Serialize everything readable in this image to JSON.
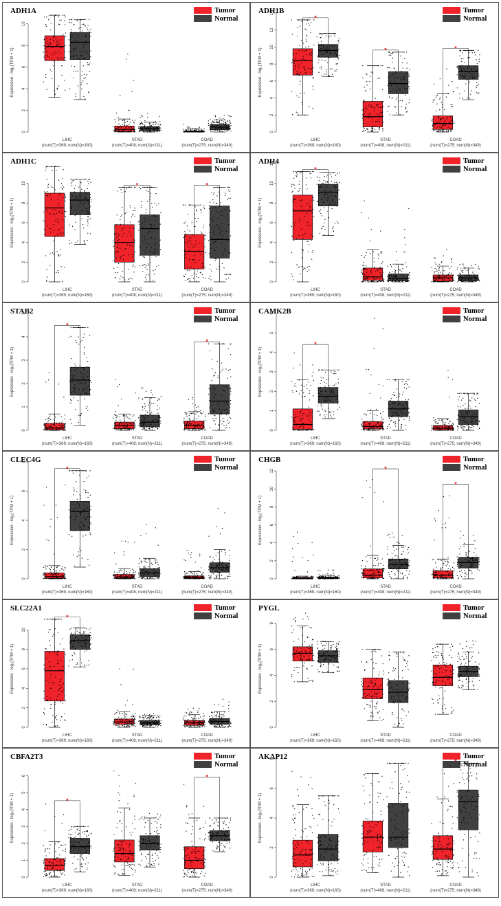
{
  "figure": {
    "colors": {
      "tumor": "#f0222a",
      "normal": "#404040",
      "sig": "#e8191d",
      "border": "#555555"
    },
    "legend": {
      "tumor": "Tumor",
      "normal": "Normal"
    },
    "categories": [
      "LIHC",
      "STAD",
      "COAD"
    ],
    "sample_labels": [
      "(num(T)=369; num(N)=160)",
      "(num(T)=408; num(N)=211)",
      "(num(T)=275; num(N)=349)"
    ],
    "ylabel": "Expression - log₂(TPM + 1)"
  },
  "chart_data": [
    {
      "type": "box",
      "title": "ADH1A",
      "ylim": [
        0,
        11
      ],
      "yticks": [
        0,
        2,
        4,
        6,
        8,
        10
      ],
      "legend_pos": "top-right",
      "series": [
        {
          "name": "Tumor",
          "boxes": [
            {
              "q1": 6.6,
              "med": 7.9,
              "q3": 8.9,
              "wlo": 3.2,
              "whi": 10.8,
              "max": 10.8
            },
            {
              "q1": 0.05,
              "med": 0.25,
              "q3": 0.55,
              "wlo": 0.0,
              "whi": 1.2,
              "max": 7.5
            },
            {
              "q1": 0.0,
              "med": 0.03,
              "q3": 0.1,
              "wlo": 0.0,
              "whi": 0.3,
              "max": 0.7
            }
          ]
        },
        {
          "name": "Normal",
          "boxes": [
            {
              "q1": 6.7,
              "med": 8.3,
              "q3": 9.2,
              "wlo": 3.0,
              "whi": 10.4,
              "max": 10.4
            },
            {
              "q1": 0.1,
              "med": 0.3,
              "q3": 0.5,
              "wlo": 0.0,
              "whi": 0.9,
              "max": 1.8
            },
            {
              "q1": 0.2,
              "med": 0.45,
              "q3": 0.7,
              "wlo": 0.0,
              "whi": 1.1,
              "max": 1.6
            }
          ]
        }
      ],
      "significant": []
    },
    {
      "type": "box",
      "title": "ADH1B",
      "ylim": [
        0,
        14
      ],
      "yticks": [
        0,
        2,
        4,
        6,
        8,
        10,
        12,
        14
      ],
      "legend_pos": "top-right",
      "series": [
        {
          "name": "Tumor",
          "boxes": [
            {
              "q1": 6.7,
              "med": 8.4,
              "q3": 9.8,
              "wlo": 2.0,
              "whi": 13.2,
              "max": 13.2
            },
            {
              "q1": 0.6,
              "med": 1.8,
              "q3": 3.6,
              "wlo": 0.0,
              "whi": 7.8,
              "max": 7.8
            },
            {
              "q1": 0.3,
              "med": 1.0,
              "q3": 1.9,
              "wlo": 0.0,
              "whi": 4.5,
              "max": 7.5
            }
          ]
        },
        {
          "name": "Normal",
          "boxes": [
            {
              "q1": 8.8,
              "med": 9.6,
              "q3": 10.3,
              "wlo": 6.5,
              "whi": 11.6,
              "max": 11.6
            },
            {
              "q1": 4.5,
              "med": 5.7,
              "q3": 7.1,
              "wlo": 2.0,
              "whi": 9.4,
              "max": 9.4
            },
            {
              "q1": 6.2,
              "med": 7.1,
              "q3": 7.8,
              "wlo": 3.8,
              "whi": 9.6,
              "max": 9.6
            }
          ]
        }
      ],
      "significant": [
        true,
        true,
        true
      ]
    },
    {
      "type": "box",
      "title": "ADH1C",
      "ylim": [
        0,
        12
      ],
      "yticks": [
        0,
        2,
        4,
        6,
        8,
        10
      ],
      "legend_pos": "top-right",
      "series": [
        {
          "name": "Tumor",
          "boxes": [
            {
              "q1": 4.6,
              "med": 7.5,
              "q3": 9.0,
              "wlo": 0.0,
              "whi": 11.7,
              "max": 11.7
            },
            {
              "q1": 2.0,
              "med": 4.0,
              "q3": 5.8,
              "wlo": 0.0,
              "whi": 9.6,
              "max": 9.6
            },
            {
              "q1": 1.3,
              "med": 3.1,
              "q3": 4.8,
              "wlo": 0.0,
              "whi": 7.8,
              "max": 7.8
            }
          ]
        },
        {
          "name": "Normal",
          "boxes": [
            {
              "q1": 6.8,
              "med": 8.3,
              "q3": 9.1,
              "wlo": 3.8,
              "whi": 10.4,
              "max": 10.4
            },
            {
              "q1": 2.7,
              "med": 5.4,
              "q3": 6.8,
              "wlo": 0.0,
              "whi": 9.6,
              "max": 9.6
            },
            {
              "q1": 2.4,
              "med": 4.3,
              "q3": 7.7,
              "wlo": 0.0,
              "whi": 9.6,
              "max": 9.6
            }
          ]
        }
      ],
      "significant": [
        false,
        true,
        true
      ]
    },
    {
      "type": "box",
      "title": "ADH4",
      "ylim": [
        0,
        12
      ],
      "yticks": [
        0,
        2,
        4,
        6,
        8,
        10,
        12
      ],
      "legend_pos": "top-right",
      "series": [
        {
          "name": "Tumor",
          "boxes": [
            {
              "q1": 4.3,
              "med": 7.2,
              "q3": 8.8,
              "wlo": 0.0,
              "whi": 11.2,
              "max": 11.2
            },
            {
              "q1": 0.15,
              "med": 0.5,
              "q3": 1.4,
              "wlo": 0.0,
              "whi": 3.3,
              "max": 8.6
            },
            {
              "q1": 0.05,
              "med": 0.4,
              "q3": 0.7,
              "wlo": 0.0,
              "whi": 1.6,
              "max": 3.5
            }
          ]
        },
        {
          "name": "Normal",
          "boxes": [
            {
              "q1": 7.7,
              "med": 9.1,
              "q3": 9.9,
              "wlo": 4.7,
              "whi": 11.1,
              "max": 11.1
            },
            {
              "q1": 0.1,
              "med": 0.35,
              "q3": 0.8,
              "wlo": 0.0,
              "whi": 1.8,
              "max": 7.8
            },
            {
              "q1": 0.1,
              "med": 0.4,
              "q3": 0.7,
              "wlo": 0.0,
              "whi": 1.4,
              "max": 1.9
            }
          ]
        }
      ],
      "significant": [
        true,
        false,
        false
      ]
    },
    {
      "type": "box",
      "title": "STAB2",
      "ylim": [
        0,
        5
      ],
      "yticks": [
        0,
        1,
        2,
        3,
        4,
        5
      ],
      "legend_pos": "top-right",
      "series": [
        {
          "name": "Tumor",
          "boxes": [
            {
              "q1": 0.02,
              "med": 0.1,
              "q3": 0.3,
              "wlo": 0.0,
              "whi": 0.7,
              "max": 2.8
            },
            {
              "q1": 0.07,
              "med": 0.2,
              "q3": 0.35,
              "wlo": 0.0,
              "whi": 0.7,
              "max": 2.2
            },
            {
              "q1": 0.07,
              "med": 0.2,
              "q3": 0.4,
              "wlo": 0.0,
              "whi": 0.8,
              "max": 1.5
            }
          ]
        },
        {
          "name": "Normal",
          "boxes": [
            {
              "q1": 1.5,
              "med": 2.15,
              "q3": 2.7,
              "wlo": 0.2,
              "whi": 4.4,
              "max": 4.4
            },
            {
              "q1": 0.15,
              "med": 0.35,
              "q3": 0.65,
              "wlo": 0.0,
              "whi": 1.4,
              "max": 1.9
            },
            {
              "q1": 0.7,
              "med": 1.25,
              "q3": 1.95,
              "wlo": 0.0,
              "whi": 3.7,
              "max": 3.7
            }
          ]
        }
      ],
      "significant": [
        true,
        false,
        true
      ]
    },
    {
      "type": "box",
      "title": "CAMK2B",
      "ylim": [
        0,
        6
      ],
      "yticks": [
        0,
        1,
        2,
        3,
        4,
        5,
        6
      ],
      "legend_pos": "top-right",
      "series": [
        {
          "name": "Tumor",
          "boxes": [
            {
              "q1": 0.05,
              "med": 0.3,
              "q3": 1.1,
              "wlo": 0.0,
              "whi": 2.6,
              "max": 4.3
            },
            {
              "q1": 0.07,
              "med": 0.2,
              "q3": 0.45,
              "wlo": 0.0,
              "whi": 1.0,
              "max": 6.0
            },
            {
              "q1": 0.02,
              "med": 0.1,
              "q3": 0.25,
              "wlo": 0.0,
              "whi": 0.6,
              "max": 3.6
            }
          ]
        },
        {
          "name": "Normal",
          "boxes": [
            {
              "q1": 1.4,
              "med": 1.75,
              "q3": 2.2,
              "wlo": 0.6,
              "whi": 3.1,
              "max": 3.1
            },
            {
              "q1": 0.7,
              "med": 1.1,
              "q3": 1.5,
              "wlo": 0.0,
              "whi": 2.6,
              "max": 2.6
            },
            {
              "q1": 0.3,
              "med": 0.7,
              "q3": 1.05,
              "wlo": 0.0,
              "whi": 1.9,
              "max": 1.9
            }
          ]
        }
      ],
      "significant": [
        true,
        false,
        false
      ]
    },
    {
      "type": "box",
      "title": "CLEC4G",
      "ylim": [
        0,
        8
      ],
      "yticks": [
        0,
        2,
        4,
        6,
        8
      ],
      "legend_pos": "top-right",
      "series": [
        {
          "name": "Tumor",
          "boxes": [
            {
              "q1": 0.03,
              "med": 0.15,
              "q3": 0.4,
              "wlo": 0.0,
              "whi": 0.9,
              "max": 6.5
            },
            {
              "q1": 0.03,
              "med": 0.12,
              "q3": 0.3,
              "wlo": 0.0,
              "whi": 0.7,
              "max": 2.6
            },
            {
              "q1": 0.02,
              "med": 0.08,
              "q3": 0.2,
              "wlo": 0.0,
              "whi": 0.5,
              "max": 2.0
            }
          ]
        },
        {
          "name": "Normal",
          "boxes": [
            {
              "q1": 3.3,
              "med": 4.6,
              "q3": 5.3,
              "wlo": 0.8,
              "whi": 7.4,
              "max": 7.4
            },
            {
              "q1": 0.15,
              "med": 0.4,
              "q3": 0.7,
              "wlo": 0.0,
              "whi": 1.4,
              "max": 3.8
            },
            {
              "q1": 0.45,
              "med": 0.75,
              "q3": 1.1,
              "wlo": 0.0,
              "whi": 2.0,
              "max": 5.4
            }
          ]
        }
      ],
      "significant": [
        true,
        false,
        false
      ]
    },
    {
      "type": "box",
      "title": "CHGB",
      "ylim": [
        0,
        13
      ],
      "yticks": [
        0,
        2,
        4,
        6,
        8,
        10,
        12
      ],
      "legend_pos": "top-right",
      "series": [
        {
          "name": "Tumor",
          "boxes": [
            {
              "q1": 0.0,
              "med": 0.05,
              "q3": 0.15,
              "wlo": 0.0,
              "whi": 0.3,
              "max": 5.8
            },
            {
              "q1": 0.1,
              "med": 0.4,
              "q3": 1.1,
              "wlo": 0.0,
              "whi": 2.6,
              "max": 12.0
            },
            {
              "q1": 0.1,
              "med": 0.4,
              "q3": 0.9,
              "wlo": 0.0,
              "whi": 2.2,
              "max": 10.3
            }
          ]
        },
        {
          "name": "Normal",
          "boxes": [
            {
              "q1": 0.02,
              "med": 0.08,
              "q3": 0.2,
              "wlo": 0.0,
              "whi": 0.4,
              "max": 1.0
            },
            {
              "q1": 1.1,
              "med": 1.6,
              "q3": 2.2,
              "wlo": 0.0,
              "whi": 3.7,
              "max": 5.2
            },
            {
              "q1": 1.2,
              "med": 1.8,
              "q3": 2.4,
              "wlo": 0.0,
              "whi": 3.8,
              "max": 5.4
            }
          ]
        }
      ],
      "significant": [
        false,
        true,
        true
      ]
    },
    {
      "type": "box",
      "title": "SLC22A1",
      "ylim": [
        0,
        12
      ],
      "yticks": [
        0,
        2,
        4,
        6,
        8,
        10
      ],
      "legend_pos": "top-right",
      "series": [
        {
          "name": "Tumor",
          "boxes": [
            {
              "q1": 2.7,
              "med": 5.8,
              "q3": 7.8,
              "wlo": 0.0,
              "whi": 11.1,
              "max": 11.1
            },
            {
              "q1": 0.3,
              "med": 0.55,
              "q3": 0.85,
              "wlo": 0.0,
              "whi": 1.6,
              "max": 6.1
            },
            {
              "q1": 0.2,
              "med": 0.45,
              "q3": 0.7,
              "wlo": 0.0,
              "whi": 1.3,
              "max": 2.0
            }
          ]
        },
        {
          "name": "Normal",
          "boxes": [
            {
              "q1": 8.0,
              "med": 8.9,
              "q3": 9.5,
              "wlo": 6.2,
              "whi": 10.2,
              "max": 10.2
            },
            {
              "q1": 0.25,
              "med": 0.45,
              "q3": 0.7,
              "wlo": 0.0,
              "whi": 1.2,
              "max": 1.4
            },
            {
              "q1": 0.3,
              "med": 0.6,
              "q3": 0.9,
              "wlo": 0.0,
              "whi": 1.6,
              "max": 2.9
            }
          ]
        }
      ],
      "significant": [
        true,
        false,
        false
      ]
    },
    {
      "type": "box",
      "title": "PYGL",
      "ylim": [
        0,
        9
      ],
      "yticks": [
        0,
        2,
        4,
        6,
        8
      ],
      "legend_pos": "top-right",
      "series": [
        {
          "name": "Tumor",
          "boxes": [
            {
              "q1": 5.1,
              "med": 5.7,
              "q3": 6.2,
              "wlo": 3.5,
              "whi": 7.8,
              "max": 8.8
            },
            {
              "q1": 2.2,
              "med": 2.9,
              "q3": 3.8,
              "wlo": 0.5,
              "whi": 6.0,
              "max": 6.0
            },
            {
              "q1": 3.2,
              "med": 3.85,
              "q3": 4.8,
              "wlo": 1.0,
              "whi": 6.4,
              "max": 6.4
            }
          ]
        },
        {
          "name": "Normal",
          "boxes": [
            {
              "q1": 5.0,
              "med": 5.5,
              "q3": 5.9,
              "wlo": 4.2,
              "whi": 6.6,
              "max": 6.6
            },
            {
              "q1": 1.9,
              "med": 2.7,
              "q3": 3.6,
              "wlo": 0.0,
              "whi": 5.8,
              "max": 5.8
            },
            {
              "q1": 3.9,
              "med": 4.3,
              "q3": 4.7,
              "wlo": 2.9,
              "whi": 5.8,
              "max": 6.8
            }
          ]
        }
      ],
      "significant": [
        false,
        false,
        false
      ]
    },
    {
      "type": "box",
      "title": "CBFA2T3",
      "ylim": [
        0,
        7
      ],
      "yticks": [
        0,
        1,
        2,
        3,
        4,
        5,
        6
      ],
      "legend_pos": "top-right",
      "series": [
        {
          "name": "Tumor",
          "boxes": [
            {
              "q1": 0.4,
              "med": 0.7,
              "q3": 1.1,
              "wlo": 0.0,
              "whi": 2.1,
              "max": 4.4
            },
            {
              "q1": 0.9,
              "med": 1.4,
              "q3": 2.2,
              "wlo": 0.1,
              "whi": 4.1,
              "max": 6.4
            },
            {
              "q1": 0.5,
              "med": 1.0,
              "q3": 1.8,
              "wlo": 0.0,
              "whi": 3.5,
              "max": 5.8
            }
          ]
        },
        {
          "name": "Normal",
          "boxes": [
            {
              "q1": 1.4,
              "med": 1.8,
              "q3": 2.3,
              "wlo": 0.3,
              "whi": 3.0,
              "max": 3.0
            },
            {
              "q1": 1.6,
              "med": 2.0,
              "q3": 2.45,
              "wlo": 0.6,
              "whi": 3.5,
              "max": 3.8
            },
            {
              "q1": 2.15,
              "med": 2.45,
              "q3": 2.75,
              "wlo": 1.5,
              "whi": 3.5,
              "max": 3.5
            }
          ]
        }
      ],
      "significant": [
        true,
        false,
        true
      ]
    },
    {
      "type": "box",
      "title": "AKAP12",
      "ylim": [
        0,
        8
      ],
      "yticks": [
        0,
        2,
        4,
        6,
        8
      ],
      "legend_pos": "top-right",
      "series": [
        {
          "name": "Tumor",
          "boxes": [
            {
              "q1": 0.7,
              "med": 1.5,
              "q3": 2.5,
              "wlo": 0.0,
              "whi": 4.9,
              "max": 7.3
            },
            {
              "q1": 1.7,
              "med": 2.7,
              "q3": 3.8,
              "wlo": 0.3,
              "whi": 7.0,
              "max": 7.0
            },
            {
              "q1": 1.2,
              "med": 1.9,
              "q3": 2.8,
              "wlo": 0.1,
              "whi": 5.3,
              "max": 7.5
            }
          ]
        },
        {
          "name": "Normal",
          "boxes": [
            {
              "q1": 1.1,
              "med": 1.9,
              "q3": 2.9,
              "wlo": 0.1,
              "whi": 5.5,
              "max": 5.5
            },
            {
              "q1": 2.0,
              "med": 2.7,
              "q3": 5.0,
              "wlo": 0.0,
              "whi": 7.7,
              "max": 7.7
            },
            {
              "q1": 3.2,
              "med": 5.1,
              "q3": 5.9,
              "wlo": 0.0,
              "whi": 7.7,
              "max": 7.7
            }
          ]
        }
      ],
      "significant": [
        false,
        false,
        true
      ]
    }
  ]
}
